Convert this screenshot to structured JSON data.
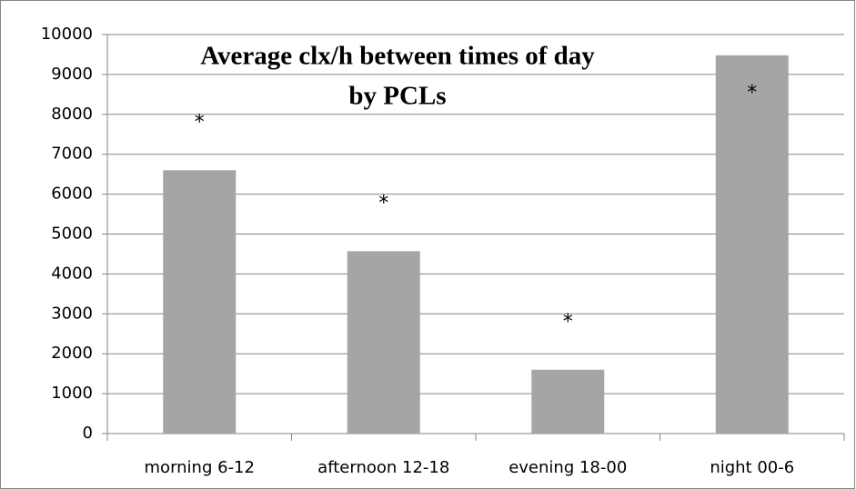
{
  "chart_data": {
    "type": "bar",
    "title": [
      "Average clx/h between times of day",
      "by PCLs"
    ],
    "categories": [
      "morning 6-12",
      "afternoon 12-18",
      "evening 18-00",
      "night 00-6"
    ],
    "values": [
      6600,
      4570,
      1600,
      9480
    ],
    "color": "#a5a5a5",
    "annotations": [
      "*",
      "*",
      "*",
      "*"
    ],
    "ylim": [
      0,
      10000
    ],
    "yticks": [
      0,
      1000,
      2000,
      3000,
      4000,
      5000,
      6000,
      7000,
      8000,
      9000,
      10000
    ],
    "grid": true
  }
}
